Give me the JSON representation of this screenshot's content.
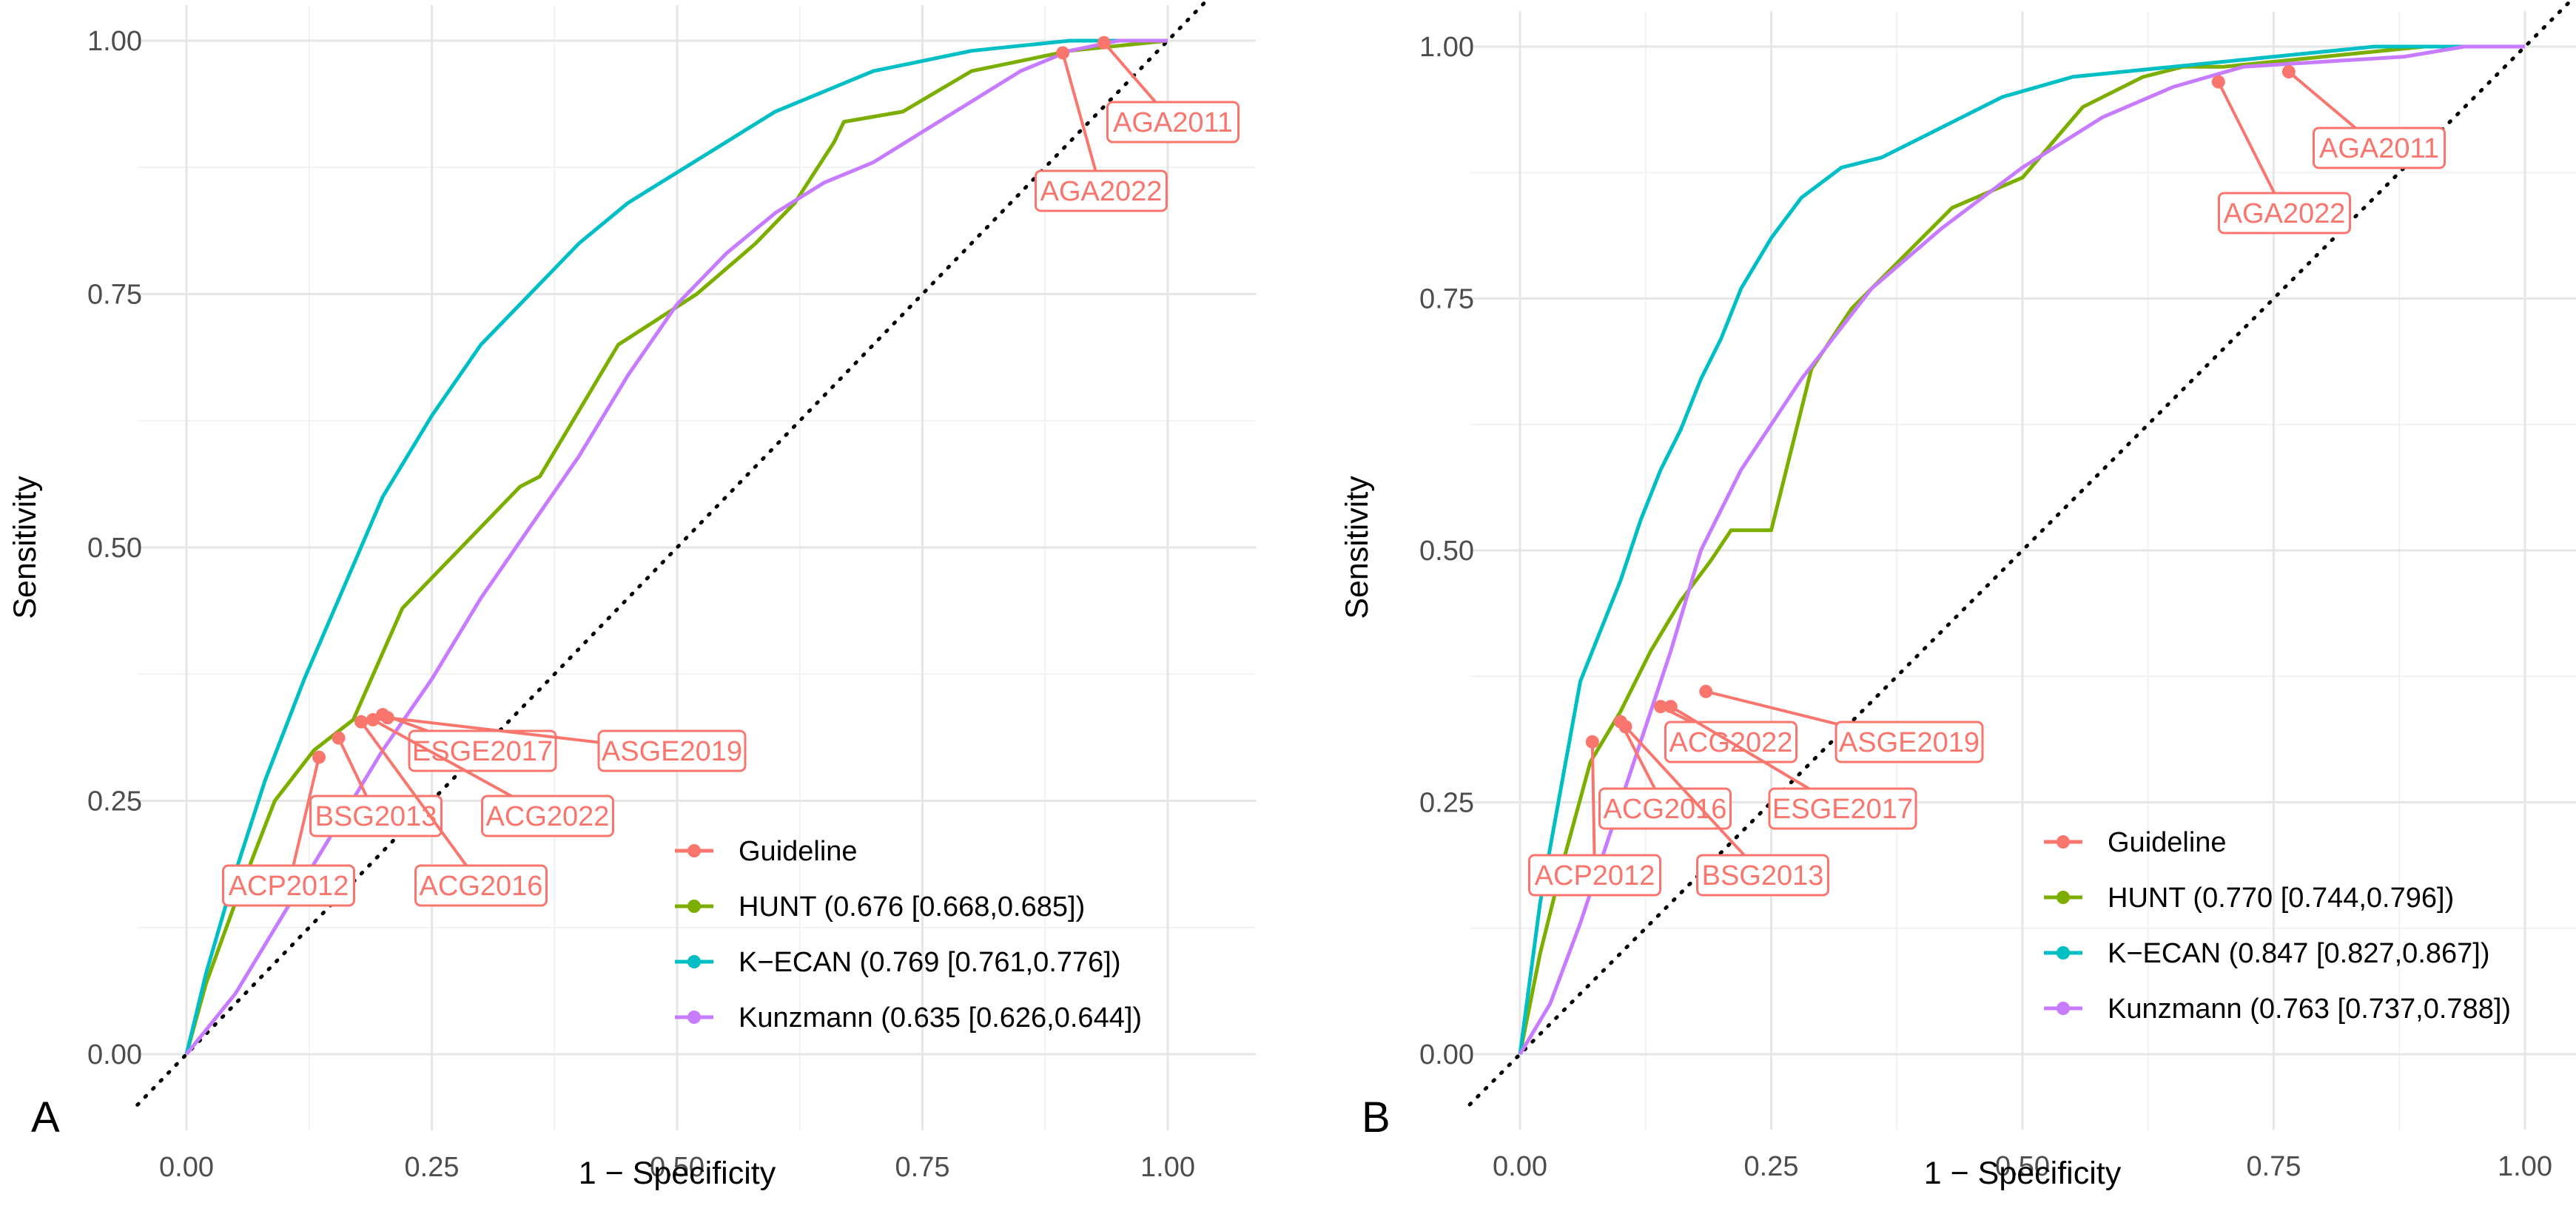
{
  "chart_data": [
    {
      "panel": "A",
      "type": "line",
      "xlabel": "1 − Specificity",
      "ylabel": "Sensitivity",
      "xlim": [
        0,
        1
      ],
      "ylim": [
        0,
        1
      ],
      "x_ticks": [
        "0.00",
        "0.25",
        "0.50",
        "0.75",
        "1.00"
      ],
      "y_ticks": [
        "0.00",
        "0.25",
        "0.50",
        "0.75",
        "1.00"
      ],
      "grid": true,
      "reference_line": "diagonal dotted",
      "legend_position": "bottom-right",
      "series": [
        {
          "name": "HUNT (0.676 [0.668,0.685])",
          "color": "#7cae00",
          "x": [
            0,
            0.02,
            0.05,
            0.09,
            0.13,
            0.17,
            0.22,
            0.28,
            0.34,
            0.36,
            0.44,
            0.52,
            0.58,
            0.62,
            0.66,
            0.67,
            0.73,
            0.8,
            0.9,
            1.0
          ],
          "y": [
            0,
            0.07,
            0.15,
            0.25,
            0.3,
            0.33,
            0.44,
            0.5,
            0.56,
            0.57,
            0.7,
            0.75,
            0.8,
            0.84,
            0.9,
            0.92,
            0.93,
            0.97,
            0.99,
            1.0
          ]
        },
        {
          "name": "K−ECAN (0.769 [0.761,0.776])",
          "color": "#00bfc4",
          "x": [
            0,
            0.02,
            0.05,
            0.08,
            0.12,
            0.16,
            0.2,
            0.25,
            0.3,
            0.35,
            0.4,
            0.45,
            0.5,
            0.55,
            0.6,
            0.65,
            0.7,
            0.75,
            0.8,
            0.85,
            0.9,
            0.95,
            1.0
          ],
          "y": [
            0,
            0.08,
            0.18,
            0.27,
            0.37,
            0.46,
            0.55,
            0.63,
            0.7,
            0.75,
            0.8,
            0.84,
            0.87,
            0.9,
            0.93,
            0.95,
            0.97,
            0.98,
            0.99,
            0.995,
            1.0,
            1.0,
            1.0
          ]
        },
        {
          "name": "Kunzmann (0.635 [0.626,0.644])",
          "color": "#c77cff",
          "x": [
            0,
            0.05,
            0.1,
            0.15,
            0.2,
            0.25,
            0.3,
            0.35,
            0.4,
            0.45,
            0.5,
            0.55,
            0.6,
            0.65,
            0.7,
            0.75,
            0.8,
            0.85,
            0.9,
            0.95,
            1.0
          ],
          "y": [
            0,
            0.06,
            0.14,
            0.22,
            0.3,
            0.37,
            0.45,
            0.52,
            0.59,
            0.67,
            0.74,
            0.79,
            0.83,
            0.86,
            0.88,
            0.91,
            0.94,
            0.97,
            0.99,
            1.0,
            1.0
          ]
        }
      ],
      "guidelines": {
        "name": "Guideline",
        "color": "#f8766d",
        "points": [
          {
            "label": "AGA2011",
            "x": 0.935,
            "y": 0.998
          },
          {
            "label": "AGA2022",
            "x": 0.893,
            "y": 0.988
          },
          {
            "label": "ESGE2017",
            "x": 0.2,
            "y": 0.335
          },
          {
            "label": "ASGE2019",
            "x": 0.205,
            "y": 0.332
          },
          {
            "label": "ACG2022",
            "x": 0.19,
            "y": 0.33
          },
          {
            "label": "BSG2013",
            "x": 0.155,
            "y": 0.312
          },
          {
            "label": "ACG2016",
            "x": 0.178,
            "y": 0.328
          },
          {
            "label": "ACP2012",
            "x": 0.135,
            "y": 0.293
          }
        ]
      }
    },
    {
      "panel": "B",
      "type": "line",
      "xlabel": "1 − Specificity",
      "ylabel": "Sensitivity",
      "xlim": [
        0,
        1
      ],
      "ylim": [
        0,
        1
      ],
      "x_ticks": [
        "0.00",
        "0.25",
        "0.50",
        "0.75",
        "1.00"
      ],
      "y_ticks": [
        "0.00",
        "0.25",
        "0.50",
        "0.75",
        "1.00"
      ],
      "grid": true,
      "reference_line": "diagonal dotted",
      "legend_position": "bottom-right",
      "series": [
        {
          "name": "HUNT (0.770 [0.744,0.796])",
          "color": "#7cae00",
          "x": [
            0,
            0.02,
            0.04,
            0.07,
            0.1,
            0.13,
            0.16,
            0.19,
            0.21,
            0.25,
            0.29,
            0.33,
            0.38,
            0.43,
            0.5,
            0.56,
            0.62,
            0.66,
            0.7,
            0.8,
            0.9,
            1.0
          ],
          "y": [
            0,
            0.1,
            0.18,
            0.29,
            0.34,
            0.4,
            0.45,
            0.49,
            0.52,
            0.52,
            0.68,
            0.74,
            0.79,
            0.84,
            0.87,
            0.94,
            0.97,
            0.98,
            0.98,
            0.99,
            1.0,
            1.0
          ]
        },
        {
          "name": "K−ECAN (0.847 [0.827,0.867])",
          "color": "#00bfc4",
          "x": [
            0,
            0.02,
            0.04,
            0.06,
            0.08,
            0.1,
            0.12,
            0.14,
            0.16,
            0.18,
            0.2,
            0.22,
            0.25,
            0.28,
            0.32,
            0.36,
            0.4,
            0.44,
            0.48,
            0.55,
            0.65,
            0.75,
            0.85,
            1.0
          ],
          "y": [
            0,
            0.15,
            0.26,
            0.37,
            0.42,
            0.47,
            0.53,
            0.58,
            0.62,
            0.67,
            0.71,
            0.76,
            0.81,
            0.85,
            0.88,
            0.89,
            0.91,
            0.93,
            0.95,
            0.97,
            0.98,
            0.99,
            1.0,
            1.0
          ]
        },
        {
          "name": "Kunzmann (0.763 [0.737,0.788])",
          "color": "#c77cff",
          "x": [
            0,
            0.03,
            0.06,
            0.09,
            0.12,
            0.15,
            0.18,
            0.22,
            0.28,
            0.35,
            0.42,
            0.5,
            0.58,
            0.65,
            0.72,
            0.8,
            0.88,
            0.94,
            1.0
          ],
          "y": [
            0,
            0.05,
            0.13,
            0.22,
            0.31,
            0.4,
            0.5,
            0.58,
            0.67,
            0.76,
            0.82,
            0.88,
            0.93,
            0.96,
            0.98,
            0.985,
            0.99,
            1.0,
            1.0
          ]
        }
      ],
      "guidelines": {
        "name": "Guideline",
        "color": "#f8766d",
        "points": [
          {
            "label": "AGA2011",
            "x": 0.765,
            "y": 0.975
          },
          {
            "label": "AGA2022",
            "x": 0.695,
            "y": 0.965
          },
          {
            "label": "ACG2022",
            "x": 0.14,
            "y": 0.345
          },
          {
            "label": "ASGE2019",
            "x": 0.185,
            "y": 0.36
          },
          {
            "label": "ESGE2017",
            "x": 0.15,
            "y": 0.345
          },
          {
            "label": "ACG2016",
            "x": 0.1,
            "y": 0.33
          },
          {
            "label": "BSG2013",
            "x": 0.105,
            "y": 0.325
          },
          {
            "label": "ACP2012",
            "x": 0.072,
            "y": 0.31
          }
        ]
      }
    }
  ]
}
